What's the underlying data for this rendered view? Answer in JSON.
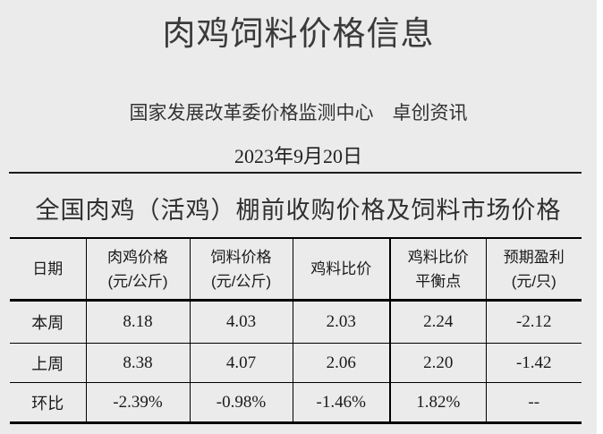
{
  "colors": {
    "page_background": "#ebebeb",
    "page_margin": "#ffffff",
    "heading_text": "#3a3a3a",
    "body_text": "#1a1a1a",
    "table_line": "#000000"
  },
  "header": {
    "title": "肉鸡饲料价格信息",
    "source": "国家发展改革委价格监测中心　卓创资讯",
    "date": "2023年9月20日"
  },
  "section": {
    "title": "全国肉鸡（活鸡）棚前收购价格及饲料市场价格"
  },
  "table": {
    "columns": [
      {
        "label": "日期",
        "unit": ""
      },
      {
        "label": "肉鸡价格",
        "unit": "(元/公斤)"
      },
      {
        "label": "饲料价格",
        "unit": "(元/公斤)"
      },
      {
        "label": "鸡料比价",
        "unit": ""
      },
      {
        "label": "鸡料比价",
        "unit": "平衡点"
      },
      {
        "label": "预期盈利",
        "unit": "(元/只)"
      }
    ],
    "rows": [
      {
        "label": "本周",
        "values": [
          "8.18",
          "4.03",
          "2.03",
          "2.24",
          "-2.12"
        ]
      },
      {
        "label": "上周",
        "values": [
          "8.38",
          "4.07",
          "2.06",
          "2.20",
          "-1.42"
        ]
      },
      {
        "label": "环比",
        "values": [
          "-2.39%",
          "-0.98%",
          "-1.46%",
          "1.82%",
          "--"
        ]
      }
    ]
  }
}
